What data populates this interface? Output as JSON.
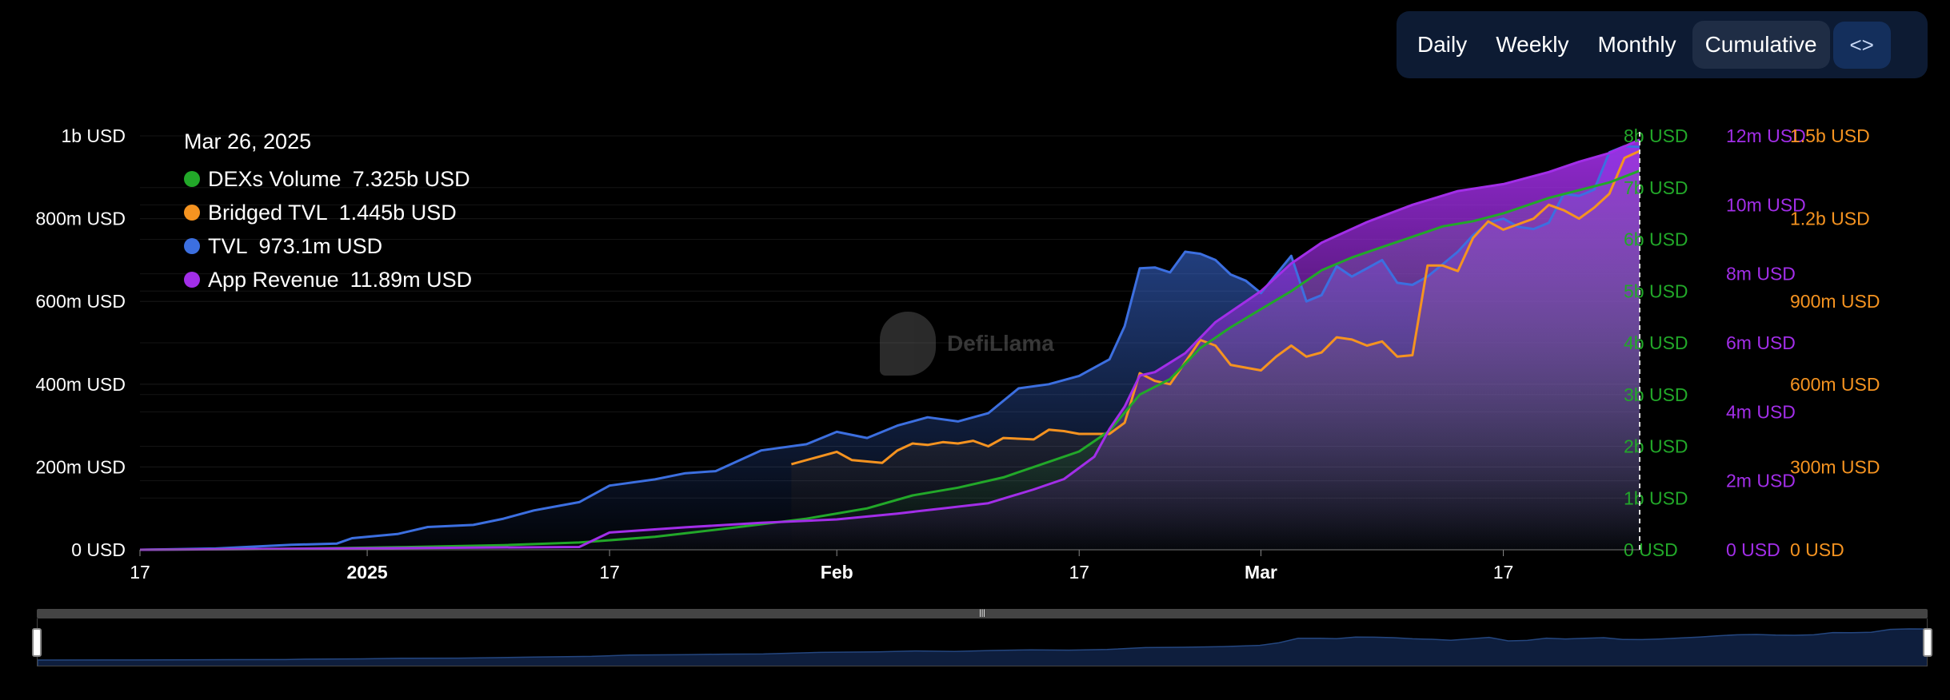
{
  "tabs": {
    "daily": "Daily",
    "weekly": "Weekly",
    "monthly": "Monthly",
    "cumulative": "Cumulative",
    "embed_icon": "code-icon",
    "active": "Cumulative"
  },
  "tooltip": {
    "date": "Mar 26, 2025",
    "rows": [
      {
        "name": "DEXs Volume",
        "value": "7.325b USD",
        "color": "#22a829"
      },
      {
        "name": "Bridged TVL",
        "value": "1.445b USD",
        "color": "#f59320"
      },
      {
        "name": "TVL",
        "value": "973.1m USD",
        "color": "#3c6fe0"
      },
      {
        "name": "App Revenue",
        "value": "11.89m USD",
        "color": "#a22ee8"
      }
    ]
  },
  "watermark": "DefiLlama",
  "chart_data": {
    "type": "area",
    "x_tick_labels": [
      "17",
      "2025",
      "17",
      "Feb",
      "17",
      "Mar",
      "17"
    ],
    "x_tick_bold": [
      false,
      true,
      false,
      true,
      false,
      true,
      false
    ],
    "x_tick_dates": [
      "2024-12-17",
      "2025-01-01",
      "2025-01-17",
      "2025-02-01",
      "2025-02-17",
      "2025-03-01",
      "2025-03-17"
    ],
    "x_range": [
      "2024-12-17",
      "2025-03-26"
    ],
    "grid": true,
    "axes": [
      {
        "series": "TVL",
        "side": "left",
        "color": "#ffffff",
        "ticks": [
          "0 USD",
          "200m USD",
          "400m USD",
          "600m USD",
          "800m USD",
          "1b USD"
        ],
        "range": [
          0,
          1000000000
        ]
      },
      {
        "series": "DEXs Volume",
        "side": "right",
        "color": "#22a829",
        "ticks": [
          "0 USD",
          "1b USD",
          "2b USD",
          "3b USD",
          "4b USD",
          "5b USD",
          "6b USD",
          "7b USD",
          "8b USD"
        ],
        "range": [
          0,
          8000000000
        ]
      },
      {
        "series": "App Revenue",
        "side": "right",
        "color": "#a22ee8",
        "ticks": [
          "0 USD",
          "2m USD",
          "4m USD",
          "6m USD",
          "8m USD",
          "10m USD",
          "12m USD"
        ],
        "range": [
          0,
          12000000
        ]
      },
      {
        "series": "Bridged TVL",
        "side": "right",
        "color": "#f59320",
        "ticks": [
          "0 USD",
          "300m USD",
          "600m USD",
          "900m USD",
          "1.2b USD",
          "1.5b USD"
        ],
        "range": [
          0,
          1500000000
        ]
      }
    ],
    "series": [
      {
        "name": "TVL",
        "color": "#3c6fe0",
        "unit": "USD",
        "points": [
          [
            "2024-12-17",
            0
          ],
          [
            "2024-12-22",
            3000000
          ],
          [
            "2024-12-27",
            12000000
          ],
          [
            "2024-12-30",
            15000000
          ],
          [
            "2024-12-31",
            28000000
          ],
          [
            "2025-01-03",
            38000000
          ],
          [
            "2025-01-05",
            55000000
          ],
          [
            "2025-01-08",
            60000000
          ],
          [
            "2025-01-10",
            75000000
          ],
          [
            "2025-01-12",
            95000000
          ],
          [
            "2025-01-15",
            115000000
          ],
          [
            "2025-01-17",
            155000000
          ],
          [
            "2025-01-20",
            170000000
          ],
          [
            "2025-01-22",
            185000000
          ],
          [
            "2025-01-24",
            190000000
          ],
          [
            "2025-01-27",
            240000000
          ],
          [
            "2025-01-30",
            255000000
          ],
          [
            "2025-02-01",
            285000000
          ],
          [
            "2025-02-03",
            270000000
          ],
          [
            "2025-02-05",
            300000000
          ],
          [
            "2025-02-07",
            320000000
          ],
          [
            "2025-02-09",
            310000000
          ],
          [
            "2025-02-11",
            330000000
          ],
          [
            "2025-02-13",
            390000000
          ],
          [
            "2025-02-15",
            400000000
          ],
          [
            "2025-02-17",
            420000000
          ],
          [
            "2025-02-19",
            460000000
          ],
          [
            "2025-02-20",
            540000000
          ],
          [
            "2025-02-21",
            680000000
          ],
          [
            "2025-02-22",
            682000000
          ],
          [
            "2025-02-23",
            670000000
          ],
          [
            "2025-02-24",
            720000000
          ],
          [
            "2025-02-25",
            715000000
          ],
          [
            "2025-02-26",
            700000000
          ],
          [
            "2025-02-27",
            665000000
          ],
          [
            "2025-02-28",
            650000000
          ],
          [
            "2025-03-01",
            620000000
          ],
          [
            "2025-03-03",
            710000000
          ],
          [
            "2025-03-04",
            600000000
          ],
          [
            "2025-03-05",
            615000000
          ],
          [
            "2025-03-06",
            685000000
          ],
          [
            "2025-03-07",
            660000000
          ],
          [
            "2025-03-08",
            680000000
          ],
          [
            "2025-03-09",
            700000000
          ],
          [
            "2025-03-10",
            645000000
          ],
          [
            "2025-03-11",
            640000000
          ],
          [
            "2025-03-12",
            660000000
          ],
          [
            "2025-03-13",
            690000000
          ],
          [
            "2025-03-14",
            720000000
          ],
          [
            "2025-03-15",
            760000000
          ],
          [
            "2025-03-16",
            790000000
          ],
          [
            "2025-03-17",
            800000000
          ],
          [
            "2025-03-18",
            780000000
          ],
          [
            "2025-03-19",
            775000000
          ],
          [
            "2025-03-20",
            790000000
          ],
          [
            "2025-03-21",
            860000000
          ],
          [
            "2025-03-22",
            855000000
          ],
          [
            "2025-03-23",
            870000000
          ],
          [
            "2025-03-24",
            960000000
          ],
          [
            "2025-03-25",
            975000000
          ],
          [
            "2025-03-26",
            973100000
          ]
        ]
      },
      {
        "name": "Bridged TVL",
        "color": "#f59320",
        "unit": "USD",
        "points": [
          [
            "2025-01-29",
            310000000
          ],
          [
            "2025-02-01",
            355000000
          ],
          [
            "2025-02-02",
            325000000
          ],
          [
            "2025-02-04",
            315000000
          ],
          [
            "2025-02-05",
            360000000
          ],
          [
            "2025-02-06",
            385000000
          ],
          [
            "2025-02-07",
            380000000
          ],
          [
            "2025-02-08",
            390000000
          ],
          [
            "2025-02-09",
            385000000
          ],
          [
            "2025-02-10",
            395000000
          ],
          [
            "2025-02-11",
            375000000
          ],
          [
            "2025-02-12",
            405000000
          ],
          [
            "2025-02-14",
            400000000
          ],
          [
            "2025-02-15",
            435000000
          ],
          [
            "2025-02-16",
            430000000
          ],
          [
            "2025-02-17",
            420000000
          ],
          [
            "2025-02-19",
            420000000
          ],
          [
            "2025-02-20",
            460000000
          ],
          [
            "2025-02-21",
            640000000
          ],
          [
            "2025-02-22",
            612000000
          ],
          [
            "2025-02-23",
            600000000
          ],
          [
            "2025-02-25",
            760000000
          ],
          [
            "2025-02-26",
            740000000
          ],
          [
            "2025-02-27",
            670000000
          ],
          [
            "2025-02-28",
            660000000
          ],
          [
            "2025-03-01",
            650000000
          ],
          [
            "2025-03-02",
            700000000
          ],
          [
            "2025-03-03",
            740000000
          ],
          [
            "2025-03-04",
            700000000
          ],
          [
            "2025-03-05",
            715000000
          ],
          [
            "2025-03-06",
            770000000
          ],
          [
            "2025-03-07",
            762000000
          ],
          [
            "2025-03-08",
            740000000
          ],
          [
            "2025-03-09",
            755000000
          ],
          [
            "2025-03-10",
            700000000
          ],
          [
            "2025-03-11",
            705000000
          ],
          [
            "2025-03-12",
            1030000000
          ],
          [
            "2025-03-13",
            1030000000
          ],
          [
            "2025-03-14",
            1010000000
          ],
          [
            "2025-03-15",
            1130000000
          ],
          [
            "2025-03-16",
            1190000000
          ],
          [
            "2025-03-17",
            1160000000
          ],
          [
            "2025-03-18",
            1180000000
          ],
          [
            "2025-03-19",
            1200000000
          ],
          [
            "2025-03-20",
            1250000000
          ],
          [
            "2025-03-21",
            1230000000
          ],
          [
            "2025-03-22",
            1200000000
          ],
          [
            "2025-03-23",
            1240000000
          ],
          [
            "2025-03-24",
            1290000000
          ],
          [
            "2025-03-25",
            1420000000
          ],
          [
            "2025-03-26",
            1445000000
          ]
        ]
      },
      {
        "name": "DEXs Volume",
        "color": "#22a829",
        "unit": "USD",
        "points": [
          [
            "2024-12-17",
            0
          ],
          [
            "2024-12-27",
            20000000
          ],
          [
            "2025-01-03",
            50000000
          ],
          [
            "2025-01-10",
            90000000
          ],
          [
            "2025-01-15",
            140000000
          ],
          [
            "2025-01-20",
            250000000
          ],
          [
            "2025-01-25",
            420000000
          ],
          [
            "2025-01-30",
            600000000
          ],
          [
            "2025-02-03",
            800000000
          ],
          [
            "2025-02-06",
            1050000000
          ],
          [
            "2025-02-09",
            1200000000
          ],
          [
            "2025-02-12",
            1400000000
          ],
          [
            "2025-02-15",
            1700000000
          ],
          [
            "2025-02-17",
            1900000000
          ],
          [
            "2025-02-19",
            2300000000
          ],
          [
            "2025-02-21",
            3000000000
          ],
          [
            "2025-02-23",
            3300000000
          ],
          [
            "2025-02-25",
            3900000000
          ],
          [
            "2025-02-27",
            4300000000
          ],
          [
            "2025-03-01",
            4650000000
          ],
          [
            "2025-03-03",
            5000000000
          ],
          [
            "2025-03-05",
            5400000000
          ],
          [
            "2025-03-07",
            5650000000
          ],
          [
            "2025-03-09",
            5850000000
          ],
          [
            "2025-03-11",
            6050000000
          ],
          [
            "2025-03-13",
            6250000000
          ],
          [
            "2025-03-15",
            6350000000
          ],
          [
            "2025-03-17",
            6500000000
          ],
          [
            "2025-03-20",
            6800000000
          ],
          [
            "2025-03-22",
            6950000000
          ],
          [
            "2025-03-24",
            7100000000
          ],
          [
            "2025-03-26",
            7325000000
          ]
        ]
      },
      {
        "name": "App Revenue",
        "color": "#a22ee8",
        "unit": "USD",
        "points": [
          [
            "2024-12-17",
            0
          ],
          [
            "2025-01-15",
            80000
          ],
          [
            "2025-01-17",
            500000
          ],
          [
            "2025-01-22",
            650000
          ],
          [
            "2025-01-27",
            780000
          ],
          [
            "2025-02-01",
            880000
          ],
          [
            "2025-02-05",
            1050000
          ],
          [
            "2025-02-08",
            1200000
          ],
          [
            "2025-02-11",
            1350000
          ],
          [
            "2025-02-14",
            1750000
          ],
          [
            "2025-02-16",
            2050000
          ],
          [
            "2025-02-18",
            2700000
          ],
          [
            "2025-02-19",
            3500000
          ],
          [
            "2025-02-20",
            4150000
          ],
          [
            "2025-02-21",
            5050000
          ],
          [
            "2025-02-22",
            5150000
          ],
          [
            "2025-02-24",
            5700000
          ],
          [
            "2025-02-26",
            6600000
          ],
          [
            "2025-02-28",
            7200000
          ],
          [
            "2025-03-01",
            7500000
          ],
          [
            "2025-03-03",
            8300000
          ],
          [
            "2025-03-05",
            8900000
          ],
          [
            "2025-03-08",
            9500000
          ],
          [
            "2025-03-11",
            10000000
          ],
          [
            "2025-03-14",
            10400000
          ],
          [
            "2025-03-17",
            10600000
          ],
          [
            "2025-03-20",
            10950000
          ],
          [
            "2025-03-22",
            11250000
          ],
          [
            "2025-03-24",
            11500000
          ],
          [
            "2025-03-26",
            11890000
          ]
        ]
      }
    ]
  }
}
